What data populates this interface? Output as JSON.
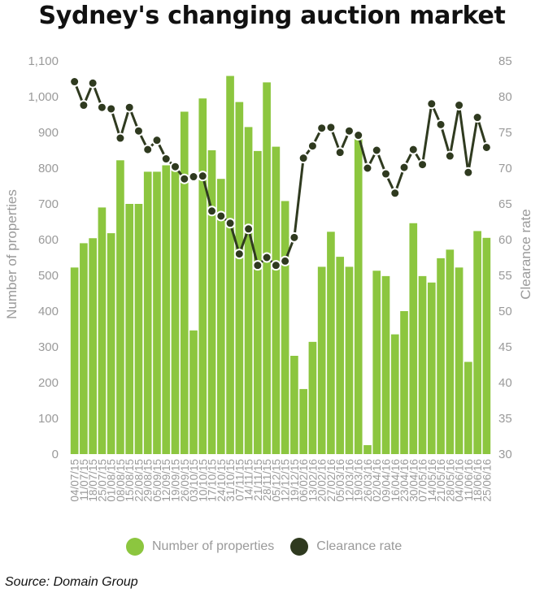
{
  "title": "Sydney's changing auction market",
  "source": "Source: Domain Group",
  "colors": {
    "bars": "#8cc63f",
    "line": "#2f3a1f",
    "axis_text": "#9a9a9a"
  },
  "legend": [
    {
      "label": "Number of properties",
      "color": "#8cc63f"
    },
    {
      "label": "Clearance rate",
      "color": "#2f3a1f"
    }
  ],
  "chart_data": {
    "type": "bar",
    "title": "Sydney's changing auction market",
    "xlabel": "",
    "ylabel": "Number of properties",
    "y2label": "Clearance rate",
    "ylim": [
      0,
      1100
    ],
    "y2lim": [
      30,
      85
    ],
    "yticks": [
      "0",
      "100",
      "200",
      "300",
      "400",
      "500",
      "600",
      "700",
      "800",
      "900",
      "1,000",
      "1,100"
    ],
    "y2ticks": [
      "30",
      "35",
      "40",
      "45",
      "50",
      "55",
      "60",
      "65",
      "70",
      "75",
      "80",
      "85"
    ],
    "grid": false,
    "legend_position": "bottom",
    "categories": [
      "04/07/15",
      "11/07/15",
      "18/07/15",
      "25/07/15",
      "01/08/15",
      "08/08/15",
      "15/08/15",
      "22/08/15",
      "29/08/15",
      "05/09/15",
      "12/09/15",
      "19/09/15",
      "26/09/15",
      "03/10/15",
      "10/10/15",
      "17/10/15",
      "24/10/15",
      "31/10/15",
      "07/11/15",
      "14/11/15",
      "21/11/15",
      "28/11/15",
      "05/12/15",
      "12/12/15",
      "19/12/15",
      "06/02/16",
      "13/02/16",
      "20/02/16",
      "27/02/16",
      "05/03/16",
      "12/03/16",
      "19/03/16",
      "26/03/16",
      "02/04/16",
      "09/04/16",
      "16/04/16",
      "23/04/16",
      "30/04/16",
      "07/05/16",
      "14/05/16",
      "21/05/16",
      "28/05/16",
      "04/06/16",
      "11/06/16",
      "18/06/16",
      "25/06/16"
    ],
    "tick_labels": [
      "04/07/15",
      "11/07/15",
      "18/07/15",
      "25/07/15",
      "01/08/15",
      "08/08/15",
      "15/08/15",
      "22/08/15",
      "29/08/15",
      "05/09/15",
      "12/09/15",
      "19/09/15",
      "26/09/15",
      "03/10/15",
      "10/10/15",
      "17/10/15",
      "24/10/15",
      "31/10/15",
      "07/11/15",
      "14/11/15",
      "21/11/15",
      "28/11/15",
      "05/12/15",
      "12/12/15",
      "19/12/15",
      "06/02/16",
      "13/02/16",
      "20/02/16",
      "27/02/16",
      "05/03/16",
      "12/03/16",
      "19/03/16",
      "26/03/16",
      "02/04/16",
      "09/04/16",
      "16/04/16",
      "23/04/16",
      "30/04/16",
      "07/05/16",
      "14/05/16",
      "21/05/16",
      "28/05/16",
      "04/06/16",
      "11/06/16",
      "18/06/16",
      "25/06/16"
    ],
    "series": [
      {
        "name": "Number of properties",
        "kind": "bar",
        "axis": "left",
        "values": [
          522,
          590,
          604,
          690,
          618,
          822,
          700,
          700,
          790,
          790,
          808,
          798,
          958,
          346,
          995,
          850,
          770,
          1058,
          985,
          915,
          848,
          1040,
          860,
          708,
          275,
          182,
          314,
          524,
          622,
          552,
          524,
          885,
          25,
          513,
          498,
          335,
          400,
          646,
          498,
          480,
          548,
          572,
          522,
          258,
          624,
          605
        ]
      },
      {
        "name": "Clearance rate",
        "kind": "line",
        "axis": "right",
        "values": [
          82.1,
          78.8,
          81.9,
          78.5,
          78.3,
          74.2,
          78.5,
          75.2,
          72.6,
          73.9,
          71.3,
          70.2,
          68.5,
          68.8,
          68.9,
          64.0,
          63.3,
          62.3,
          58.0,
          61.5,
          56.4,
          57.5,
          56.4,
          57.0,
          60.3,
          71.4,
          73.1,
          75.6,
          75.7,
          72.2,
          75.2,
          74.6,
          70.0,
          72.5,
          69.2,
          66.5,
          70.1,
          72.6,
          70.5,
          79.0,
          76.1,
          71.7,
          78.8,
          69.4,
          77.1,
          72.9
        ]
      }
    ]
  }
}
